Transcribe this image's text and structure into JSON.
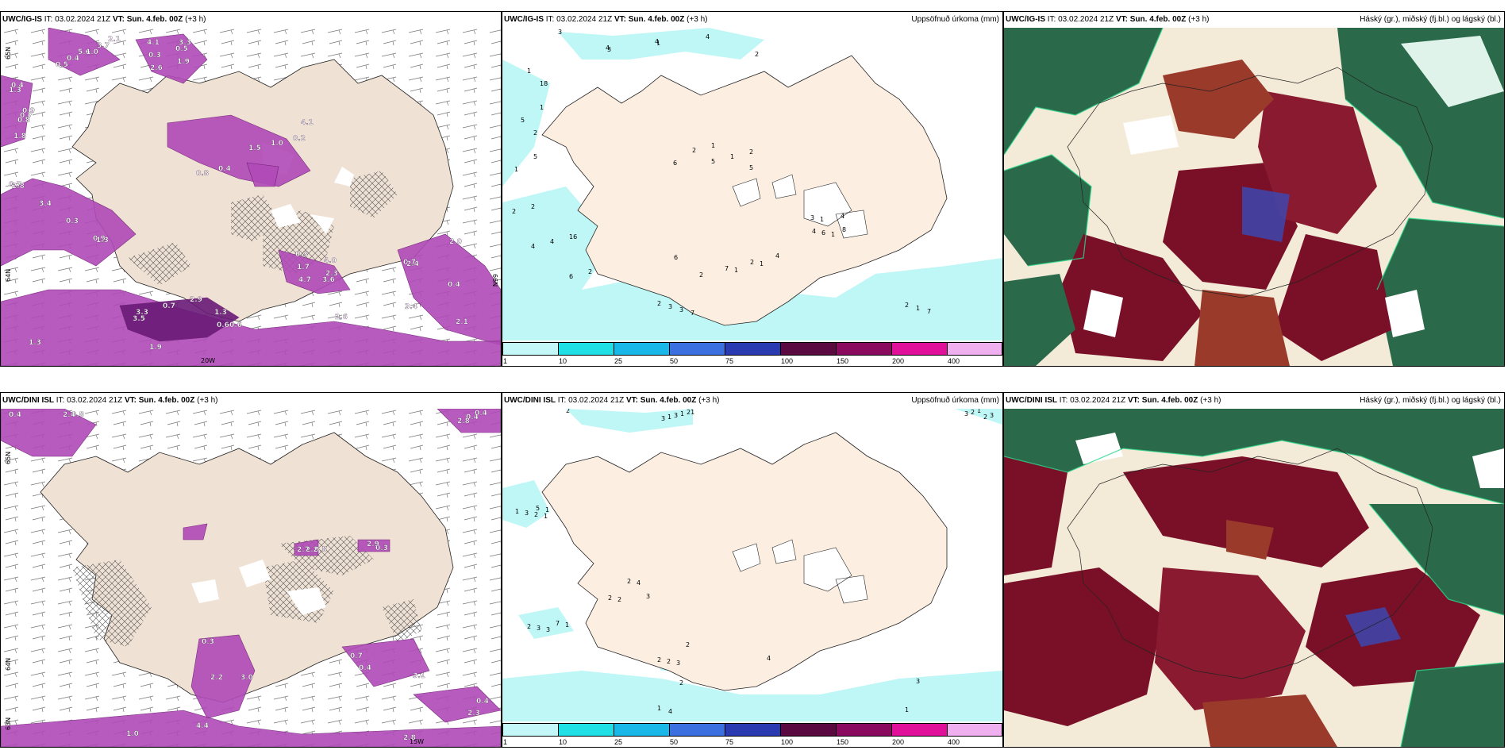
{
  "panels": [
    {
      "model": "UWC/IG-IS",
      "it_label": "IT:",
      "it": "03.02.2024 21Z",
      "vt_label": "VT:",
      "vt": "Sun. 4.feb. 00Z",
      "lead": "(+3 h)",
      "right": ""
    },
    {
      "model": "UWC/IG-IS",
      "it_label": "IT:",
      "it": "03.02.2024 21Z",
      "vt_label": "VT:",
      "vt": "Sun. 4.feb. 00Z",
      "lead": "(+3 h)",
      "right": "Uppsöfnuð úrkoma (mm)"
    },
    {
      "model": "UWC/IG-IS",
      "it_label": "IT:",
      "it": "03.02.2024 21Z",
      "vt_label": "VT:",
      "vt": "Sun. 4.feb. 00Z",
      "lead": "(+3 h)",
      "right": "Háský (gr.), miðský (fj.bl.) og lágský (bl.)"
    },
    {
      "model": "UWC/DINI ISL",
      "it_label": "IT:",
      "it": "03.02.2024 21Z",
      "vt_label": "VT:",
      "vt": "Sun. 4.feb. 00Z",
      "lead": "(+3 h)",
      "right": ""
    },
    {
      "model": "UWC/DINI ISL",
      "it_label": "IT:",
      "it": "03.02.2024 21Z",
      "vt_label": "VT:",
      "vt": "Sun. 4.feb. 00Z",
      "lead": "(+3 h)",
      "right": "Uppsöfnuð úrkoma (mm)"
    },
    {
      "model": "UWC/DINI ISL",
      "it_label": "IT:",
      "it": "03.02.2024 21Z",
      "vt_label": "VT:",
      "vt": "Sun. 4.feb. 00Z",
      "lead": "(+3 h)",
      "right": "Háský (gr.), miðský (fj.bl.) og lágský (bl.)"
    }
  ],
  "colorbar": {
    "ticks": [
      "1",
      "10",
      "25",
      "50",
      "75",
      "100",
      "150",
      "200",
      "400"
    ],
    "colors": [
      "#c4f7f7",
      "#20e0e6",
      "#1ab8e8",
      "#3a70e0",
      "#2a3ab0",
      "#5a0a40",
      "#8a0a60",
      "#e0109a",
      "#f0b0f0"
    ]
  },
  "grid_labels_top": {
    "lat_left": "65N",
    "lat_right": "66N",
    "lon_bottom": "20W",
    "lat_mid": "64N"
  },
  "grid_labels_bottom": {
    "lat_left": "65N",
    "lat_right": "64N",
    "lon_bottom": "15W",
    "lat_low": "63N"
  },
  "precip_top": [
    "0.7",
    "5.6",
    "4.1",
    "1.8",
    "0.2",
    "3.6",
    "0.7",
    "1.3",
    "3.5",
    "0.9",
    "0.4",
    "0.5",
    "0.9",
    "0.4",
    "0.3",
    "0.4",
    "1.3",
    "0.60.6",
    "0.3",
    "0.5",
    "0.3",
    "0.4",
    "1.0",
    "4.0",
    "3.4",
    "2.6",
    "2.9",
    "3.4",
    "2.1",
    "1.9",
    "0.7",
    "0.8",
    "1.7",
    "2.0",
    "1.9",
    "0.7",
    "2.8",
    "3.7",
    "2.6",
    "1.3",
    "1.5",
    "2.3",
    "2.4",
    "2.1",
    "3.3",
    "1.3",
    "1.0",
    "3.3",
    "0.8",
    "4.1",
    "4.7"
  ],
  "precip_bottom": [
    "0.4",
    "0.4",
    "2.2",
    "0.4",
    "1.0",
    "0.8",
    "0.3",
    "0.4",
    "0.8",
    "0.4",
    "0.3",
    "0.7",
    "2.8",
    "2.2",
    "2.9",
    "2.3",
    "2.4",
    "2.8",
    "3.0",
    "3.1",
    "4.4",
    "2.7"
  ],
  "accum_top": [
    "3",
    "18",
    "16",
    "2",
    "8",
    "2",
    "1",
    "3",
    "2",
    "2",
    "1",
    "4",
    "2",
    "1",
    "1",
    "1",
    "2",
    "6",
    "6",
    "3",
    "6",
    "4",
    "5",
    "4",
    "1",
    "1",
    "1",
    "2",
    "2",
    "1",
    "2",
    "2",
    "4",
    "3",
    "7",
    "4",
    "1",
    "6",
    "5",
    "3",
    "7",
    "2",
    "4",
    "5",
    "4",
    "5",
    "1",
    "7",
    "4"
  ],
  "accum_bottom": [
    "2",
    "5",
    "3",
    "3",
    "4",
    "1",
    "7",
    "21",
    "1",
    "2",
    "2",
    "2",
    "1",
    "1",
    "1",
    "1",
    "1",
    "2",
    "2",
    "4",
    "2",
    "3",
    "3",
    "2",
    "2",
    "3",
    "3",
    "3",
    "1",
    "2",
    "3",
    "4",
    "2",
    "2",
    "3",
    "3",
    "1"
  ]
}
